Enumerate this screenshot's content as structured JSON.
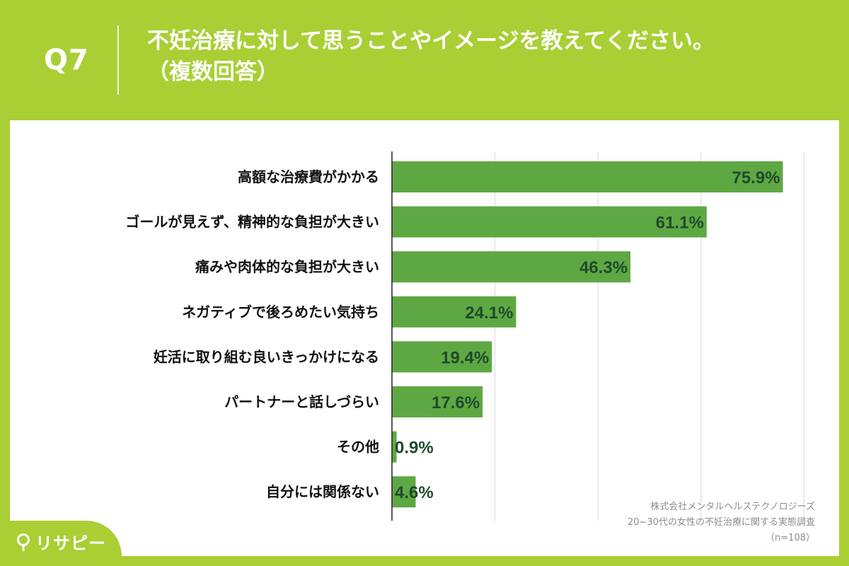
{
  "header": {
    "question_no": "Q7",
    "title": "不妊治療に対して思うことやイメージを教えてください。",
    "subtitle": "（複数回答）"
  },
  "colors": {
    "background": "#a9cf35",
    "bar": "#5ea843",
    "label_text": "#1f4a2a",
    "grid": "#d9d9d9"
  },
  "chart_data": {
    "type": "bar",
    "orientation": "horizontal",
    "categories": [
      "高額な治療費がかかる",
      "ゴールが見えず、精神的な負担が大きい",
      "痛みや肉体的な負担が大きい",
      "ネガティブで後ろめたい気持ち",
      "妊活に取り組む良いきっかけになる",
      "パートナーと話しづらい",
      "その他",
      "自分には関係ない"
    ],
    "values": [
      75.9,
      61.1,
      46.3,
      24.1,
      19.4,
      17.6,
      0.9,
      4.6
    ],
    "value_labels": [
      "75.9%",
      "61.1%",
      "46.3%",
      "24.1%",
      "19.4%",
      "17.6%",
      "0.9%",
      "4.6%"
    ],
    "xlim": [
      0,
      100
    ],
    "grid": true
  },
  "source": {
    "company": "株式会社メンタルヘルステクノロジーズ",
    "survey": "20~30代の女性の不妊治療に関する実態調査",
    "sample": "（n=108）"
  },
  "brand": {
    "logo_text": "リサピー",
    "logo_icon": "pin-icon"
  }
}
